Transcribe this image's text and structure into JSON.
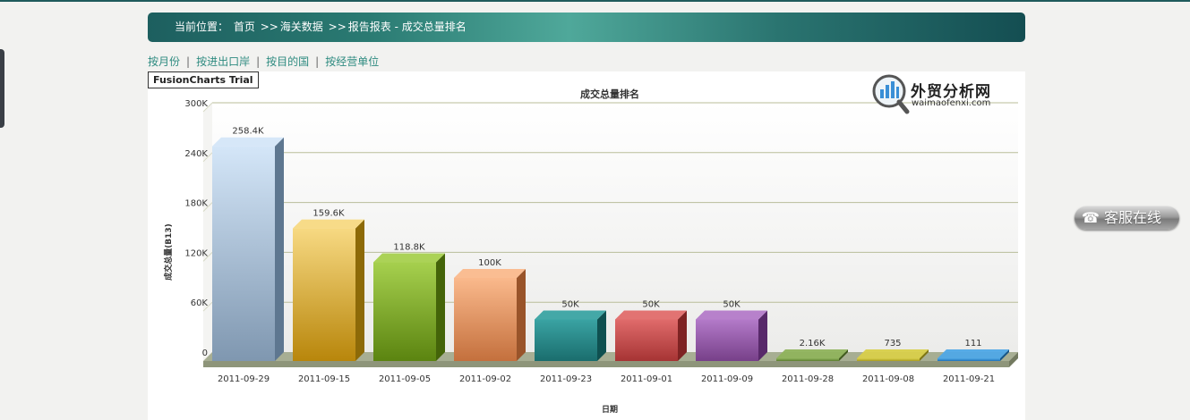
{
  "breadcrumb": {
    "prefix": "当前位置：",
    "home": "首页",
    "sep1": ">>",
    "section": "海关数据",
    "sep2": ">>",
    "page": "报告报表 - 成交总量排名"
  },
  "tabs": [
    {
      "label": "按月份"
    },
    {
      "label": "按进出口岸"
    },
    {
      "label": "按目的国"
    },
    {
      "label": "按经营单位"
    }
  ],
  "tab_separator": "|",
  "watermark": "FusionCharts Trial",
  "logo": {
    "name_cn": "外贸分析网",
    "name_en": "waimaofenxi.com",
    "icon": "magnifier-bar-chart-icon"
  },
  "service_button": {
    "label": "客服在线",
    "icon": "phone-icon",
    "glyph": "☎"
  },
  "chart_data": {
    "type": "bar",
    "style": "3d-column",
    "title": "成交总量排名",
    "xlabel": "日期",
    "ylabel": "成交总量(B13)",
    "categories": [
      "2011-09-29",
      "2011-09-15",
      "2011-09-05",
      "2011-09-02",
      "2011-09-23",
      "2011-09-01",
      "2011-09-09",
      "2011-09-28",
      "2011-09-08",
      "2011-09-21"
    ],
    "values": [
      258400,
      159600,
      118800,
      100000,
      50000,
      50000,
      50000,
      2160,
      735,
      111
    ],
    "value_labels": [
      "258.4K",
      "159.6K",
      "118.8K",
      "100K",
      "50K",
      "50K",
      "50K",
      "2.16K",
      "735",
      "111"
    ],
    "ylim": [
      0,
      300000
    ],
    "yticks": [
      {
        "value": 0,
        "label": "0"
      },
      {
        "value": 60000,
        "label": "60K"
      },
      {
        "value": 120000,
        "label": "120K"
      },
      {
        "value": 180000,
        "label": "180K"
      },
      {
        "value": 240000,
        "label": "240K"
      },
      {
        "value": 300000,
        "label": "300K"
      }
    ],
    "grid": true,
    "colors": [
      {
        "top": "#d4e6f8",
        "bottom": "#7f97b0",
        "side": "#5e7790"
      },
      {
        "top": "#f7d982",
        "bottom": "#b8860b",
        "side": "#8d6a08"
      },
      {
        "top": "#a6d04e",
        "bottom": "#5b8410",
        "side": "#446409"
      },
      {
        "top": "#fab98c",
        "bottom": "#c4703d",
        "side": "#99542a"
      },
      {
        "top": "#3aa3a3",
        "bottom": "#1a6d6d",
        "side": "#0f5050"
      },
      {
        "top": "#e06b6b",
        "bottom": "#a63434",
        "side": "#7e2323"
      },
      {
        "top": "#b37ac9",
        "bottom": "#774089",
        "side": "#58296a"
      },
      {
        "top": "#8fb35c",
        "bottom": "#5b7d2e",
        "side": "#415b1f"
      },
      {
        "top": "#d8cf4a",
        "bottom": "#a99d1e",
        "side": "#7e7512"
      },
      {
        "top": "#4fa8e6",
        "bottom": "#1f72b8",
        "side": "#165689"
      }
    ]
  }
}
